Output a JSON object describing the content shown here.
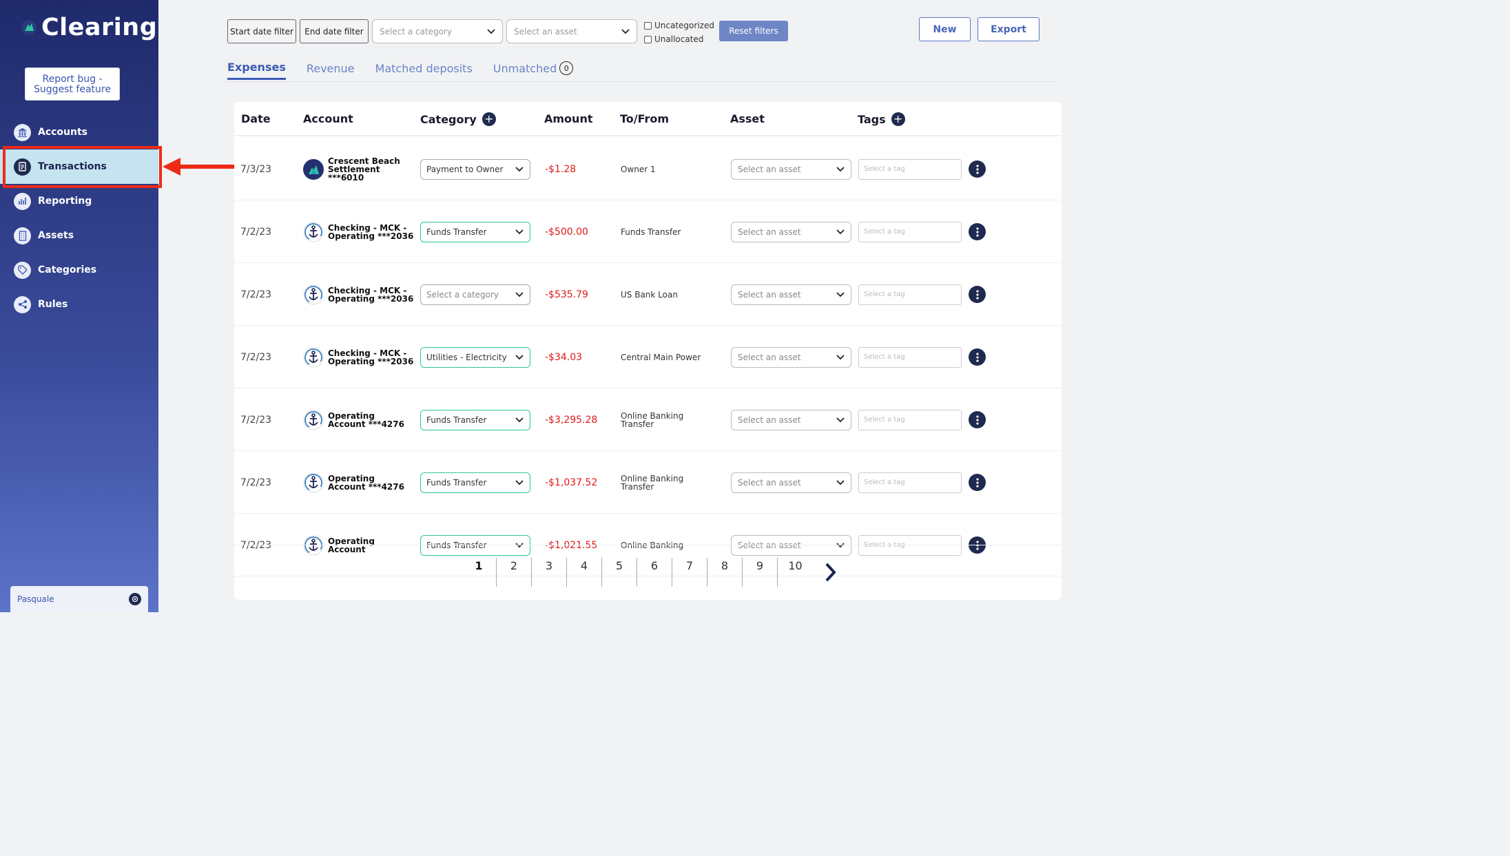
{
  "brand": {
    "name": "Clearing"
  },
  "sidebar": {
    "report_button": "Report bug - Suggest feature",
    "items": [
      {
        "label": "Accounts",
        "icon": "bank-icon"
      },
      {
        "label": "Transactions",
        "icon": "document-icon",
        "active": true
      },
      {
        "label": "Reporting",
        "icon": "bar-chart-icon"
      },
      {
        "label": "Assets",
        "icon": "building-icon"
      },
      {
        "label": "Categories",
        "icon": "tag-icon"
      },
      {
        "label": "Rules",
        "icon": "rules-icon"
      }
    ],
    "user": "Pasquale"
  },
  "filters": {
    "start_date": "Start date filter",
    "end_date": "End date filter",
    "category_placeholder": "Select a category",
    "asset_placeholder": "Select an asset",
    "uncategorized": "Uncategorized",
    "unallocated": "Unallocated",
    "reset": "Reset filters"
  },
  "actions": {
    "new": "New",
    "export": "Export"
  },
  "tabs": [
    {
      "label": "Expenses",
      "active": true
    },
    {
      "label": "Revenue"
    },
    {
      "label": "Matched deposits"
    },
    {
      "label": "Unmatched",
      "count": "0"
    }
  ],
  "table": {
    "headers": {
      "date": "Date",
      "account": "Account",
      "category": "Category",
      "amount": "Amount",
      "to_from": "To/From",
      "asset": "Asset",
      "tags": "Tags"
    },
    "asset_placeholder": "Select an asset",
    "tag_placeholder": "Select a tag",
    "rows": [
      {
        "date": "7/3/23",
        "account": "Crescent Beach Settlement ***6010",
        "account_icon": "crescent-logo-icon",
        "category": "Payment to Owner",
        "category_style": "plain",
        "amount": "-$1.28",
        "to_from": "Owner 1"
      },
      {
        "date": "7/2/23",
        "account": "Checking - MCK - Operating ***2036",
        "account_icon": "anchor-icon",
        "category": "Funds Transfer",
        "category_style": "filled",
        "amount": "-$500.00",
        "to_from": "Funds Transfer"
      },
      {
        "date": "7/2/23",
        "account": "Checking - MCK - Operating ***2036",
        "account_icon": "anchor-icon",
        "category": "Select a category",
        "category_style": "empty",
        "amount": "-$535.79",
        "to_from": "US Bank Loan"
      },
      {
        "date": "7/2/23",
        "account": "Checking - MCK - Operating ***2036",
        "account_icon": "anchor-icon",
        "category": "Utilities - Electricity",
        "category_style": "filled",
        "amount": "-$34.03",
        "to_from": "Central Main Power"
      },
      {
        "date": "7/2/23",
        "account": "Operating Account ***4276",
        "account_icon": "anchor-icon",
        "category": "Funds Transfer",
        "category_style": "filled",
        "amount": "-$3,295.28",
        "to_from": "Online Banking Transfer"
      },
      {
        "date": "7/2/23",
        "account": "Operating Account ***4276",
        "account_icon": "anchor-icon",
        "category": "Funds Transfer",
        "category_style": "filled",
        "amount": "-$1,037.52",
        "to_from": "Online Banking Transfer"
      },
      {
        "date": "7/2/23",
        "account": "Operating Account",
        "account_icon": "anchor-icon",
        "category": "Funds Transfer",
        "category_style": "filled",
        "amount": "-$1,021.55",
        "to_from": "Online Banking"
      }
    ]
  },
  "pagination": {
    "pages": [
      "1",
      "2",
      "3",
      "4",
      "5",
      "6",
      "7",
      "8",
      "9",
      "10"
    ],
    "current": "1"
  },
  "colors": {
    "accent": "#3c5ab5",
    "negative": "#e01818",
    "filled_border": "#2ec4a0",
    "highlight": "#ee2a16"
  }
}
